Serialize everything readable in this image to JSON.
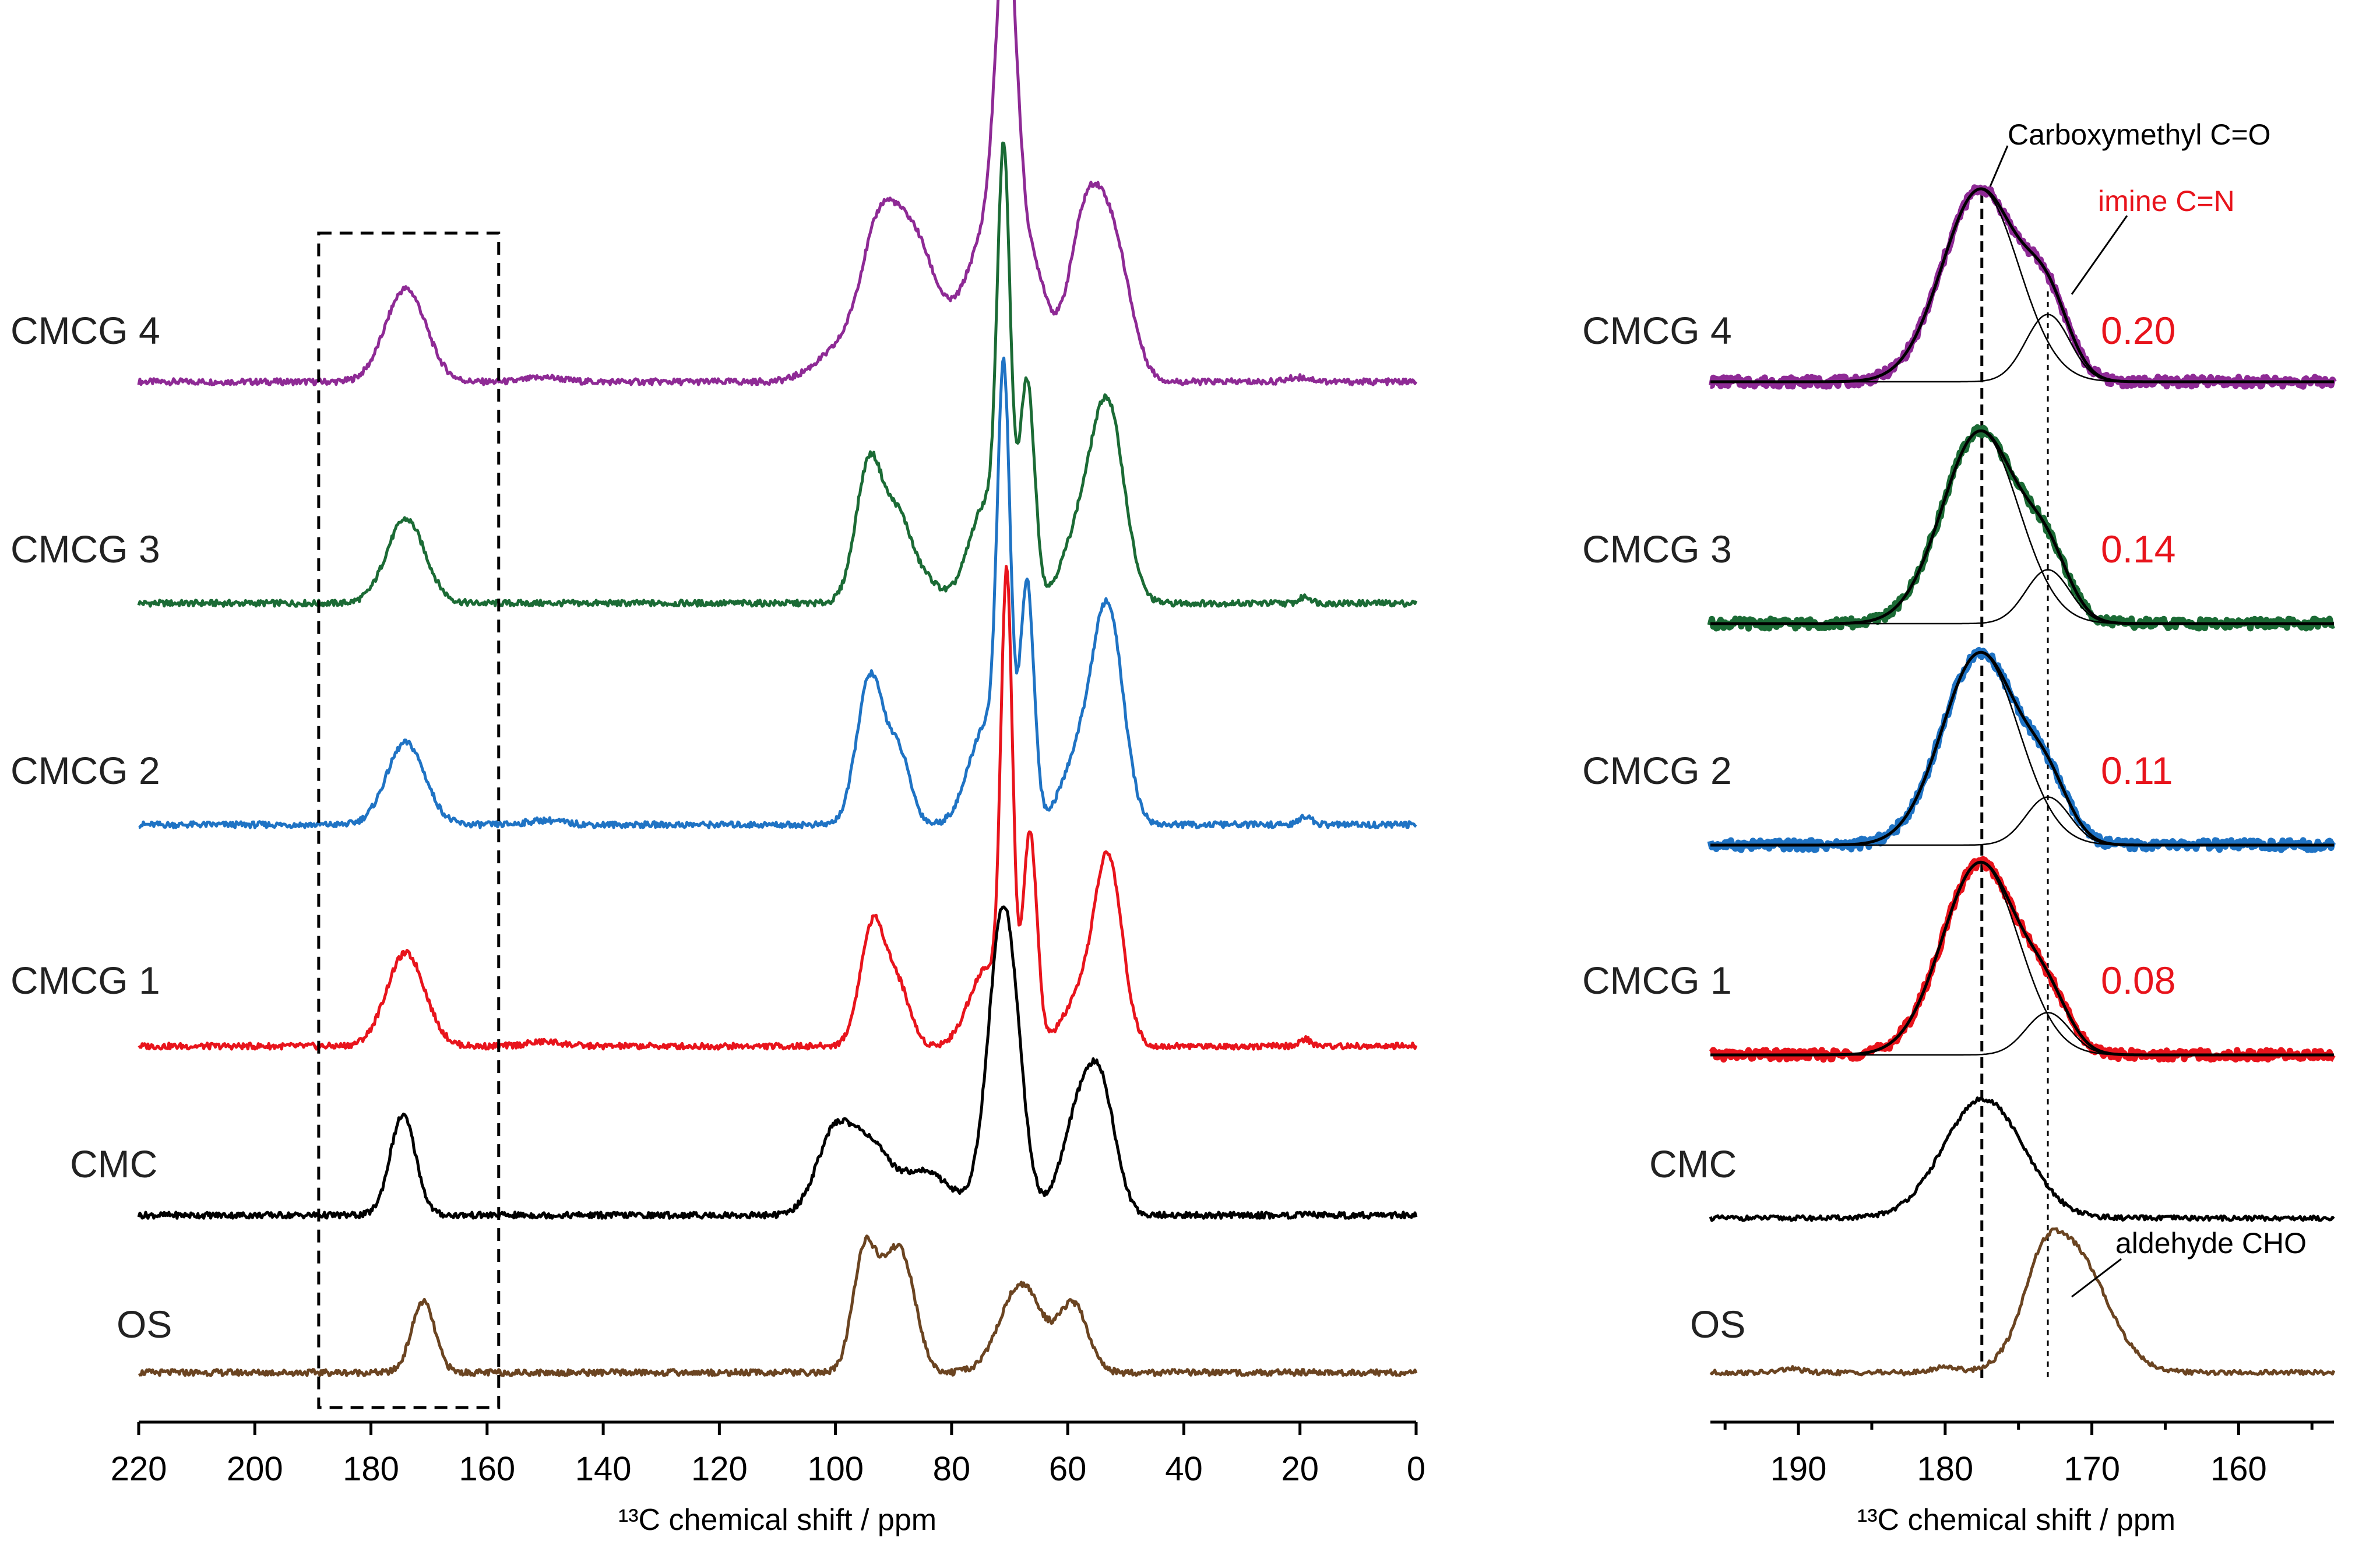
{
  "chart_data": [
    {
      "type": "line",
      "panel": "full-spectra",
      "xlabel": "¹³C chemical shift / ppm",
      "ylabel": "",
      "xlim": [
        220,
        0
      ],
      "xticks": [
        220,
        200,
        180,
        160,
        140,
        120,
        100,
        80,
        60,
        40,
        20,
        0
      ],
      "grid": false,
      "highlight_box_ppm": [
        189,
        158
      ],
      "series": [
        {
          "name": "CMCG 4",
          "color": "#8e2a95",
          "peaks": [
            [
              174,
              0.42,
              3.5
            ],
            [
              150,
              0.02,
              3
            ],
            [
              100,
              0.12,
              4
            ],
            [
              92,
              0.72,
              3.5
            ],
            [
              86,
              0.4,
              3
            ],
            [
              80,
              0.25,
              5
            ],
            [
              74,
              0.5,
              3
            ],
            [
              70.5,
              1.72,
              1.8
            ],
            [
              66,
              0.5,
              2.5
            ],
            [
              57,
              0.7,
              3
            ],
            [
              52,
              0.55,
              3
            ],
            [
              20,
              0.02,
              2
            ]
          ]
        },
        {
          "name": "CMCG 3",
          "color": "#1b6b35",
          "peaks": [
            [
              174,
              0.38,
              3.3
            ],
            [
              94,
              0.66,
              2.4
            ],
            [
              89,
              0.32,
              2
            ],
            [
              85,
              0.12,
              2.5
            ],
            [
              74,
              0.45,
              3
            ],
            [
              71,
              1.8,
              1.1
            ],
            [
              67,
              0.98,
              1.3
            ],
            [
              58,
              0.3,
              3
            ],
            [
              53,
              0.85,
              2.8
            ],
            [
              19,
              0.03,
              1
            ]
          ]
        },
        {
          "name": "CMCG 2",
          "color": "#1f73c4",
          "peaks": [
            [
              174,
              0.37,
              3.3
            ],
            [
              150,
              0.02,
              3
            ],
            [
              94,
              0.67,
              2.3
            ],
            [
              89,
              0.3,
              2
            ],
            [
              74,
              0.45,
              3
            ],
            [
              71,
              1.82,
              1.1
            ],
            [
              67,
              1.07,
              1.2
            ],
            [
              58,
              0.3,
              3
            ],
            [
              53,
              0.93,
              2.6
            ],
            [
              19,
              0.04,
              1
            ]
          ]
        },
        {
          "name": "CMCG 1",
          "color": "#e8141c",
          "peaks": [
            [
              174,
              0.42,
              3.3
            ],
            [
              150,
              0.02,
              3
            ],
            [
              93.5,
              0.56,
              2.2
            ],
            [
              89,
              0.24,
              2
            ],
            [
              74,
              0.35,
              3
            ],
            [
              70.5,
              1.98,
              1.0
            ],
            [
              66.5,
              0.95,
              1.2
            ],
            [
              58,
              0.2,
              3
            ],
            [
              53,
              0.82,
              2.4
            ],
            [
              19,
              0.03,
              1
            ]
          ]
        },
        {
          "name": "CMC",
          "color": "#000000",
          "peaks": [
            [
              174.5,
              0.45,
              2.2
            ],
            [
              100,
              0.38,
              3.2
            ],
            [
              94,
              0.25,
              3
            ],
            [
              85,
              0.2,
              5
            ],
            [
              71,
              1.4,
              2.6
            ],
            [
              58,
              0.45,
              3
            ],
            [
              54,
              0.45,
              2.5
            ]
          ]
        },
        {
          "name": "OS",
          "color": "#6b4421",
          "peaks": [
            [
              171,
              0.32,
              2
            ],
            [
              95,
              0.55,
              2
            ],
            [
              91,
              0.3,
              2
            ],
            [
              88,
              0.42,
              2.2
            ],
            [
              68,
              0.4,
              3.6
            ],
            [
              59,
              0.3,
              2.5
            ]
          ]
        }
      ]
    },
    {
      "type": "line",
      "panel": "carbonyl-region-fit",
      "xlabel": "¹³C chemical shift / ppm",
      "ylabel": "",
      "xlim": [
        196,
        153.5
      ],
      "xticks": [
        190,
        180,
        170,
        160
      ],
      "grid": false,
      "reference_lines_ppm": [
        177.5,
        173
      ],
      "annotations": [
        {
          "text": "Carboxymethyl C=O",
          "ppm": 177.5
        },
        {
          "text": "imine C=N",
          "ppm": 173
        },
        {
          "text": "aldehyde CHO",
          "ppm": 171
        }
      ],
      "series": [
        {
          "name": "CMCG 4",
          "color": "#8e2a95",
          "ratio": "0.20",
          "fit_components": [
            [
              177.6,
              1.0,
              2.6
            ],
            [
              173,
              0.35,
              1.5
            ]
          ]
        },
        {
          "name": "CMCG 3",
          "color": "#1b6b35",
          "ratio": "0.14",
          "fit_components": [
            [
              177.6,
              1.0,
              2.6
            ],
            [
              173,
              0.28,
              1.5
            ]
          ]
        },
        {
          "name": "CMCG 2",
          "color": "#1f73c4",
          "ratio": "0.11",
          "fit_components": [
            [
              177.6,
              1.0,
              2.6
            ],
            [
              173,
              0.25,
              1.5
            ]
          ]
        },
        {
          "name": "CMCG 1",
          "color": "#e8141c",
          "ratio": "0.08",
          "fit_components": [
            [
              177.6,
              1.0,
              2.6
            ],
            [
              173,
              0.22,
              1.5
            ]
          ]
        },
        {
          "name": "CMC",
          "color": "#000000",
          "fit_components": [
            [
              177.4,
              0.62,
              2.7
            ]
          ]
        },
        {
          "name": "OS",
          "color": "#6b4421",
          "fit_components": [
            [
              171.5,
              0.65,
              2.4
            ],
            [
              173.5,
              0.2,
              1.2
            ],
            [
              190.5,
              0.02,
              0.7
            ],
            [
              180,
              0.03,
              0.8
            ]
          ]
        }
      ]
    }
  ]
}
